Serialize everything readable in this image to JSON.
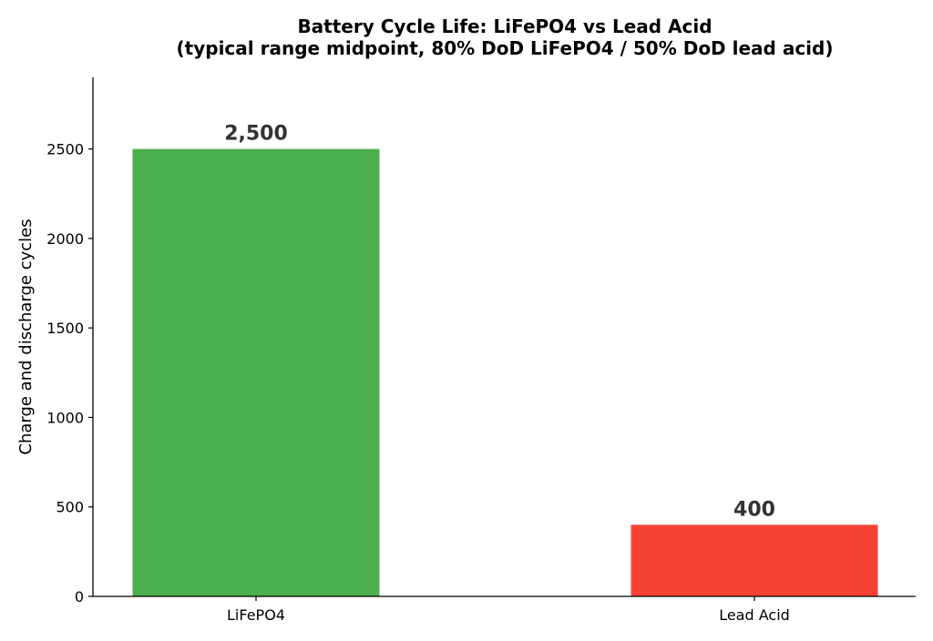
{
  "chart_data": {
    "type": "bar",
    "title": "Battery Cycle Life: LiFePO4 vs Lead Acid",
    "subtitle": "(typical range midpoint, 80% DoD LiFePO4 / 50% DoD lead acid)",
    "xlabel": "",
    "ylabel": "Charge and discharge cycles",
    "categories": [
      "LiFePO4",
      "Lead Acid"
    ],
    "values": [
      2500,
      400
    ],
    "data_labels": [
      "2,500",
      "400"
    ],
    "colors": [
      "#4caf50",
      "#f44336"
    ],
    "ylim": [
      0,
      2900
    ],
    "yticks": [
      0,
      500,
      1000,
      1500,
      2000,
      2500
    ],
    "grid": false,
    "legend": "none"
  }
}
